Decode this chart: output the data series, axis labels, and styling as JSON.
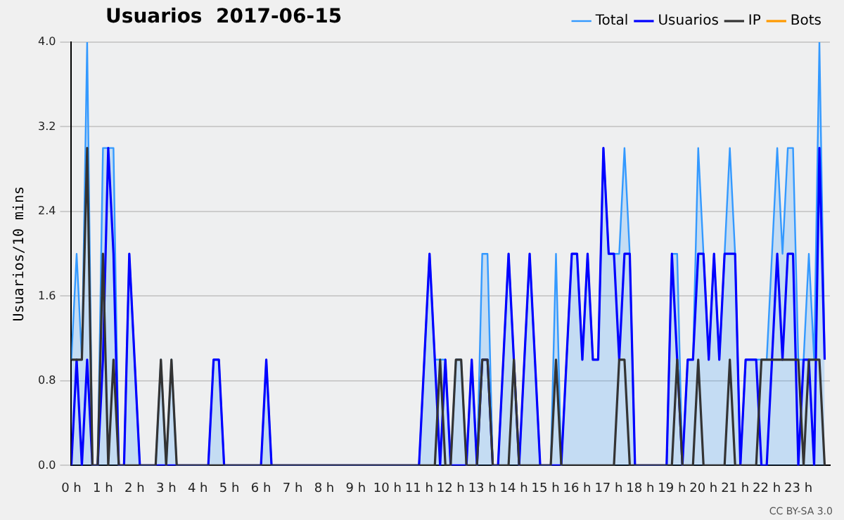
{
  "chart_data": {
    "type": "line",
    "title": "Usuarios  2017-06-15",
    "ylabel": "Usuarios/10 mins",
    "annotations": [
      "CC BY-SA 3.0"
    ],
    "x": [
      0,
      0.167,
      0.333,
      0.5,
      0.667,
      0.833,
      1,
      1.167,
      1.333,
      1.5,
      1.667,
      1.833,
      2,
      2.167,
      2.333,
      2.5,
      2.667,
      2.833,
      3,
      3.167,
      3.333,
      3.5,
      3.667,
      3.833,
      4,
      4.167,
      4.333,
      4.5,
      4.667,
      4.833,
      5,
      5.167,
      5.333,
      5.5,
      5.667,
      5.833,
      6,
      6.167,
      6.333,
      6.5,
      6.667,
      6.833,
      7,
      7.167,
      7.333,
      7.5,
      7.667,
      7.833,
      8,
      8.167,
      8.333,
      8.5,
      8.667,
      8.833,
      9,
      9.167,
      9.333,
      9.5,
      9.667,
      9.833,
      10,
      10.167,
      10.333,
      10.5,
      10.667,
      10.833,
      11,
      11.167,
      11.333,
      11.5,
      11.667,
      11.833,
      12,
      12.167,
      12.333,
      12.5,
      12.667,
      12.833,
      13,
      13.167,
      13.333,
      13.5,
      13.667,
      13.833,
      14,
      14.167,
      14.333,
      14.5,
      14.667,
      14.833,
      15,
      15.167,
      15.333,
      15.5,
      15.667,
      15.833,
      16,
      16.167,
      16.333,
      16.5,
      16.667,
      16.833,
      17,
      17.167,
      17.333,
      17.5,
      17.667,
      17.833,
      18,
      18.167,
      18.333,
      18.5,
      18.667,
      18.833,
      19,
      19.167,
      19.333,
      19.5,
      19.667,
      19.833,
      20,
      20.167,
      20.333,
      20.5,
      20.667,
      20.833,
      21,
      21.167,
      21.333,
      21.5,
      21.667,
      21.833,
      22,
      22.167,
      22.333,
      22.5,
      22.667,
      22.833,
      23,
      23.167,
      23.333,
      23.5,
      23.667,
      23.833
    ],
    "series": [
      {
        "name": "Total",
        "type": "area",
        "color": "#3399ff",
        "values": [
          1,
          2,
          1,
          4,
          0,
          0,
          3,
          3,
          3,
          0,
          0,
          2,
          1,
          0,
          null,
          null,
          0,
          1,
          0,
          1,
          0,
          null,
          null,
          null,
          null,
          null,
          0,
          1,
          1,
          0,
          null,
          null,
          null,
          null,
          null,
          null,
          0,
          1,
          0,
          null,
          null,
          null,
          null,
          null,
          null,
          null,
          null,
          null,
          null,
          null,
          null,
          null,
          null,
          null,
          null,
          null,
          null,
          null,
          null,
          null,
          null,
          null,
          null,
          null,
          null,
          null,
          0,
          1,
          2,
          1,
          1,
          1,
          0,
          1,
          1,
          0,
          1,
          0,
          2,
          2,
          0,
          0,
          1,
          2,
          1,
          0,
          1,
          2,
          1,
          0,
          null,
          0,
          2,
          0,
          1,
          2,
          2,
          1,
          2,
          1,
          1,
          3,
          2,
          2,
          2,
          3,
          2,
          0,
          null,
          null,
          null,
          null,
          null,
          0,
          2,
          2,
          0,
          1,
          1,
          3,
          2,
          1,
          2,
          1,
          2,
          3,
          2,
          0,
          1,
          1,
          1,
          1,
          1,
          2,
          3,
          2,
          3,
          3,
          1,
          1,
          2,
          1,
          4,
          1
        ]
      },
      {
        "name": "Usuarios",
        "type": "line",
        "color": "#0000ff",
        "values": [
          0,
          1,
          0,
          1,
          0,
          0,
          1,
          3,
          2,
          0,
          0,
          2,
          1,
          0,
          null,
          null,
          null,
          null,
          null,
          null,
          null,
          null,
          null,
          null,
          null,
          null,
          0,
          1,
          1,
          0,
          null,
          null,
          null,
          null,
          null,
          null,
          0,
          1,
          0,
          null,
          null,
          null,
          null,
          null,
          null,
          null,
          null,
          null,
          null,
          null,
          null,
          null,
          null,
          null,
          null,
          null,
          null,
          null,
          null,
          null,
          null,
          null,
          null,
          null,
          null,
          null,
          0,
          1,
          2,
          1,
          0,
          1,
          0,
          null,
          null,
          0,
          1,
          0,
          1,
          1,
          0,
          0,
          1,
          2,
          1,
          0,
          1,
          2,
          1,
          0,
          null,
          null,
          null,
          0,
          1,
          2,
          2,
          1,
          2,
          1,
          1,
          3,
          2,
          2,
          1,
          2,
          2,
          0,
          null,
          null,
          null,
          null,
          null,
          0,
          2,
          1,
          0,
          1,
          1,
          2,
          2,
          1,
          2,
          1,
          2,
          2,
          2,
          0,
          1,
          1,
          1,
          0,
          0,
          1,
          2,
          1,
          2,
          2,
          0,
          1,
          1,
          0,
          3,
          1
        ]
      },
      {
        "name": "IP",
        "type": "line",
        "color": "#333333",
        "values": [
          1,
          1,
          1,
          3,
          0,
          0,
          2,
          0,
          1,
          0,
          0,
          0,
          0,
          0,
          0,
          0,
          0,
          1,
          0,
          1,
          0,
          0,
          0,
          0,
          0,
          0,
          0,
          0,
          0,
          0,
          0,
          0,
          0,
          0,
          0,
          0,
          0,
          0,
          0,
          0,
          0,
          0,
          0,
          0,
          0,
          0,
          0,
          0,
          0,
          0,
          0,
          0,
          0,
          0,
          0,
          0,
          0,
          0,
          0,
          0,
          0,
          0,
          0,
          0,
          0,
          0,
          0,
          0,
          0,
          0,
          1,
          0,
          0,
          1,
          1,
          0,
          0,
          0,
          1,
          1,
          0,
          0,
          0,
          0,
          1,
          0,
          0,
          0,
          0,
          0,
          0,
          0,
          1,
          0,
          0,
          0,
          0,
          0,
          0,
          0,
          0,
          0,
          0,
          0,
          1,
          1,
          0,
          0,
          0,
          0,
          0,
          0,
          0,
          0,
          0,
          1,
          0,
          0,
          0,
          1,
          0,
          0,
          0,
          0,
          0,
          1,
          0,
          0,
          0,
          0,
          0,
          1,
          1,
          1,
          1,
          1,
          1,
          1,
          1,
          0,
          1,
          1,
          1,
          0
        ]
      },
      {
        "name": "Bots",
        "type": "line",
        "color": "#ff9900",
        "values": [
          null,
          null,
          null,
          null,
          null,
          null,
          null,
          null,
          null,
          null,
          null,
          null,
          null,
          null,
          null,
          null,
          null,
          null,
          null,
          null,
          null,
          null,
          null,
          null,
          null,
          null,
          null,
          null,
          null,
          null,
          null,
          null,
          null,
          null,
          null,
          null,
          null,
          null,
          null,
          null,
          null,
          null,
          null,
          null,
          null,
          null,
          null,
          null,
          null,
          null,
          null,
          null,
          null,
          null,
          null,
          null,
          null,
          null,
          null,
          null,
          null,
          null,
          null,
          null,
          null,
          null,
          null,
          null,
          null,
          null,
          null,
          null,
          null,
          null,
          null,
          null,
          null,
          null,
          null,
          null,
          null,
          null,
          null,
          null,
          null,
          null,
          null,
          null,
          null,
          null,
          null,
          null,
          null,
          null,
          null,
          null,
          null,
          null,
          null,
          null,
          null,
          null,
          null,
          null,
          null,
          null,
          null,
          null,
          null,
          null,
          null,
          null,
          null,
          null,
          null,
          null,
          null,
          null,
          null,
          null,
          null,
          null,
          null,
          null,
          null,
          null,
          null,
          null,
          null,
          null,
          null,
          null,
          null,
          null,
          null,
          null,
          null,
          null,
          null,
          null,
          null,
          null,
          null,
          null
        ]
      }
    ],
    "xlim": [
      0,
      24
    ],
    "xticks": [
      {
        "value": 0,
        "label": "0 h"
      },
      {
        "value": 1,
        "label": "1 h"
      },
      {
        "value": 2,
        "label": "2 h"
      },
      {
        "value": 3,
        "label": "3 h"
      },
      {
        "value": 4,
        "label": "4 h"
      },
      {
        "value": 5,
        "label": "5 h"
      },
      {
        "value": 6,
        "label": "6 h"
      },
      {
        "value": 7,
        "label": "7 h"
      },
      {
        "value": 8,
        "label": "8 h"
      },
      {
        "value": 9,
        "label": "9 h"
      },
      {
        "value": 10,
        "label": "10 h"
      },
      {
        "value": 11,
        "label": "11 h"
      },
      {
        "value": 12,
        "label": "12 h"
      },
      {
        "value": 13,
        "label": "13 h"
      },
      {
        "value": 14,
        "label": "14 h"
      },
      {
        "value": 15,
        "label": "15 h"
      },
      {
        "value": 16,
        "label": "16 h"
      },
      {
        "value": 17,
        "label": "17 h"
      },
      {
        "value": 18,
        "label": "18 h"
      },
      {
        "value": 19,
        "label": "19 h"
      },
      {
        "value": 20,
        "label": "20 h"
      },
      {
        "value": 21,
        "label": "21 h"
      },
      {
        "value": 22,
        "label": "22 h"
      },
      {
        "value": 23,
        "label": "23 h"
      }
    ],
    "ylim": [
      0,
      4
    ],
    "yticks": [
      {
        "value": 0,
        "label": "0.0"
      },
      0.8,
      1.6,
      2.4,
      3.2,
      {
        "value": 4,
        "label": "4.0"
      }
    ],
    "grid": "y",
    "legend": "top right",
    "marker": "none",
    "line_style": "solid"
  }
}
